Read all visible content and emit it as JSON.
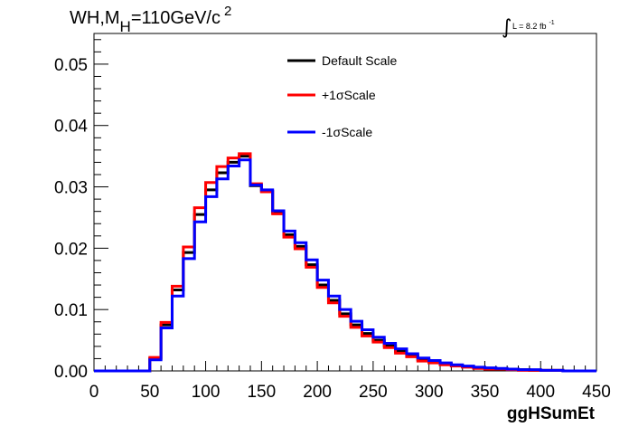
{
  "title": {
    "main": "WH,M",
    "sub": "H",
    "rest": "=110GeV/c",
    "sup": "2"
  },
  "lumi": {
    "integral": "∫",
    "text": "L = 8.2 fb",
    "exp": "-1"
  },
  "chart_data": {
    "type": "line",
    "xlabel": "ggHSumEt",
    "ylabel": "",
    "xlim": [
      0,
      450
    ],
    "ylim": [
      0,
      0.055
    ],
    "x_ticks": [
      0,
      50,
      100,
      150,
      200,
      250,
      300,
      350,
      400,
      450
    ],
    "x_tick_labels": [
      "0",
      "50",
      "100",
      "150",
      "200",
      "250",
      "300",
      "350",
      "400",
      "450"
    ],
    "y_ticks": [
      0,
      0.01,
      0.02,
      0.03,
      0.04,
      0.05
    ],
    "y_tick_labels": [
      "0.00",
      "0.01",
      "0.02",
      "0.03",
      "0.04",
      "0.05"
    ],
    "bin_edges": [
      0,
      10,
      20,
      30,
      40,
      50,
      60,
      70,
      80,
      90,
      100,
      110,
      120,
      130,
      140,
      150,
      160,
      170,
      180,
      190,
      200,
      210,
      220,
      230,
      240,
      250,
      260,
      270,
      280,
      290,
      300,
      310,
      320,
      330,
      340,
      350,
      360,
      370,
      380,
      390,
      400,
      410,
      420,
      430,
      440,
      450
    ],
    "legend_position": "top-center",
    "series": [
      {
        "name": "Default Scale",
        "color": "#000000",
        "values": [
          0,
          0,
          0,
          0,
          0,
          0.002,
          0.0075,
          0.0132,
          0.0193,
          0.0255,
          0.0295,
          0.0323,
          0.034,
          0.035,
          0.0302,
          0.0293,
          0.0258,
          0.0222,
          0.0203,
          0.0173,
          0.014,
          0.0115,
          0.0093,
          0.0075,
          0.0061,
          0.005,
          0.0041,
          0.0032,
          0.0025,
          0.0018,
          0.0015,
          0.0011,
          0.0009,
          0.0007,
          0.0005,
          0.0004,
          0.0003,
          0.0002,
          0.0002,
          0.0001,
          0.0001,
          0.0001,
          0,
          0,
          0
        ]
      },
      {
        "name": "+1σScale",
        "color": "#ff0000",
        "values": [
          0,
          0,
          0,
          0,
          0,
          0.0022,
          0.0079,
          0.0138,
          0.0202,
          0.0266,
          0.0307,
          0.0333,
          0.0347,
          0.0354,
          0.0305,
          0.0292,
          0.0256,
          0.0218,
          0.0199,
          0.0169,
          0.0136,
          0.0111,
          0.0089,
          0.0071,
          0.0057,
          0.0047,
          0.0038,
          0.0029,
          0.0023,
          0.0016,
          0.0013,
          0.001,
          0.0008,
          0.0006,
          0.0004,
          0.0003,
          0.0003,
          0.0002,
          0.0001,
          0.0001,
          0.0001,
          0.0001,
          0,
          0,
          0
        ]
      },
      {
        "name": "-1σScale",
        "color": "#0000ff",
        "values": [
          0,
          0,
          0,
          0,
          0,
          0.0018,
          0.007,
          0.0122,
          0.0183,
          0.0243,
          0.0284,
          0.0313,
          0.0334,
          0.0344,
          0.0303,
          0.0295,
          0.0261,
          0.0228,
          0.0209,
          0.0181,
          0.0148,
          0.0122,
          0.01,
          0.0081,
          0.0067,
          0.0055,
          0.0045,
          0.0036,
          0.0028,
          0.0021,
          0.0017,
          0.0013,
          0.001,
          0.0008,
          0.0006,
          0.0005,
          0.0004,
          0.0003,
          0.0002,
          0.0002,
          0.0001,
          0.0001,
          0,
          0,
          0
        ]
      }
    ]
  }
}
